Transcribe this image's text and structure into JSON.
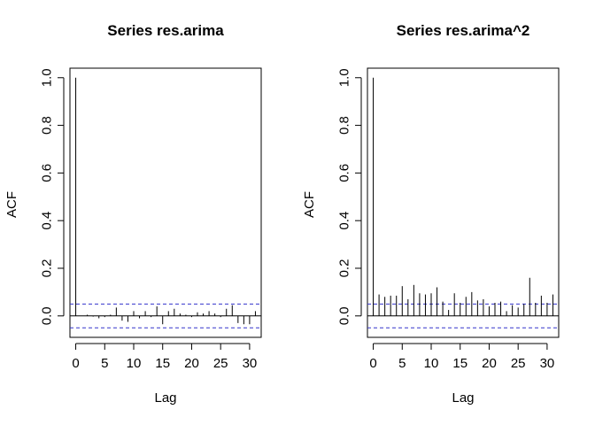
{
  "chart_data": [
    {
      "type": "bar",
      "title": "Series  res.arima",
      "xlabel": "Lag",
      "ylabel": "ACF",
      "xlim": [
        -1,
        32
      ],
      "ylim": [
        -0.09,
        1.04
      ],
      "x_ticks": [
        0,
        5,
        10,
        15,
        20,
        25,
        30
      ],
      "y_ticks": [
        0.0,
        0.2,
        0.4,
        0.6,
        0.8,
        1.0
      ],
      "y_tick_labels": [
        "0.0",
        "0.2",
        "0.4",
        "0.6",
        "0.8",
        "1.0"
      ],
      "ci": 0.05,
      "ci_color": "#3333cc",
      "lags": [
        0,
        1,
        2,
        3,
        4,
        5,
        6,
        7,
        8,
        9,
        10,
        11,
        12,
        13,
        14,
        15,
        16,
        17,
        18,
        19,
        20,
        21,
        22,
        23,
        24,
        25,
        26,
        27,
        28,
        29,
        30,
        31
      ],
      "values": [
        1.0,
        0.0,
        0.005,
        -0.003,
        -0.01,
        -0.005,
        0.005,
        0.035,
        -0.02,
        -0.025,
        0.02,
        -0.01,
        0.02,
        -0.005,
        0.04,
        -0.035,
        0.02,
        0.03,
        0.01,
        0.005,
        -0.005,
        0.015,
        0.01,
        0.02,
        0.01,
        -0.005,
        0.03,
        0.045,
        -0.03,
        -0.035,
        -0.035,
        0.02
      ]
    },
    {
      "type": "bar",
      "title": "Series  res.arima^2",
      "xlabel": "Lag",
      "ylabel": "ACF",
      "xlim": [
        -1,
        32
      ],
      "ylim": [
        -0.09,
        1.04
      ],
      "x_ticks": [
        0,
        5,
        10,
        15,
        20,
        25,
        30
      ],
      "y_ticks": [
        0.0,
        0.2,
        0.4,
        0.6,
        0.8,
        1.0
      ],
      "y_tick_labels": [
        "0.0",
        "0.2",
        "0.4",
        "0.6",
        "0.8",
        "1.0"
      ],
      "ci": 0.05,
      "ci_color": "#3333cc",
      "lags": [
        0,
        1,
        2,
        3,
        4,
        5,
        6,
        7,
        8,
        9,
        10,
        11,
        12,
        13,
        14,
        15,
        16,
        17,
        18,
        19,
        20,
        21,
        22,
        23,
        24,
        25,
        26,
        27,
        28,
        29,
        30,
        31
      ],
      "values": [
        1.0,
        0.09,
        0.08,
        0.085,
        0.085,
        0.125,
        0.07,
        0.13,
        0.095,
        0.09,
        0.095,
        0.12,
        0.06,
        0.025,
        0.095,
        0.055,
        0.08,
        0.1,
        0.065,
        0.07,
        0.04,
        0.055,
        0.06,
        0.02,
        0.045,
        0.035,
        0.05,
        0.16,
        0.055,
        0.085,
        0.055,
        0.09
      ]
    }
  ]
}
